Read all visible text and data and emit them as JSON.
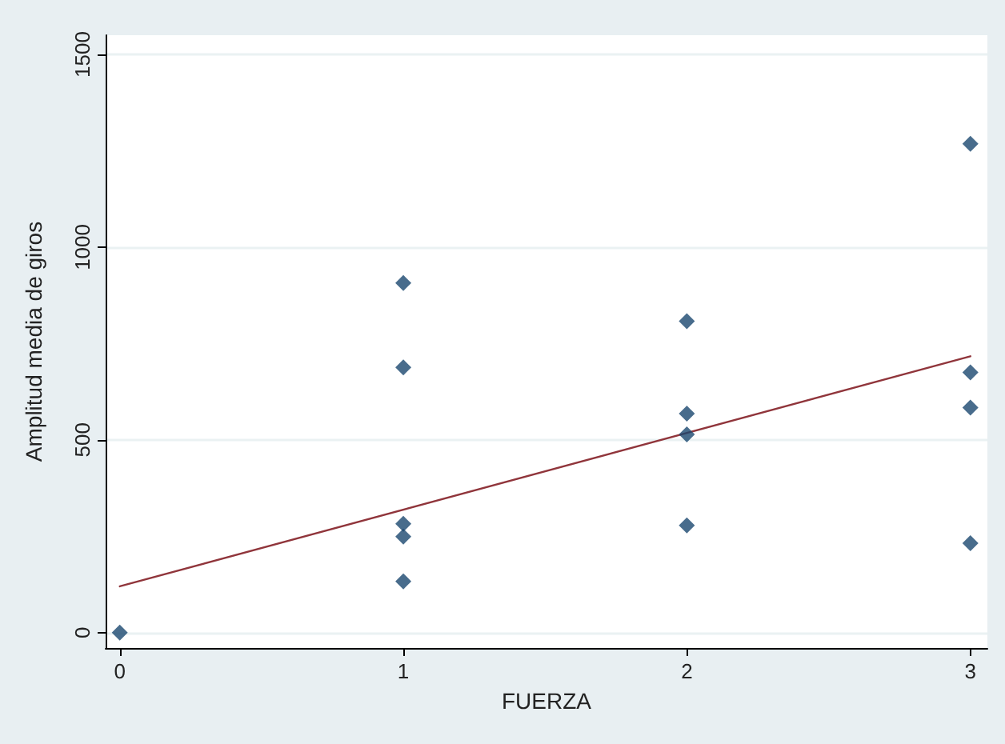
{
  "chart_data": {
    "type": "scatter",
    "xlabel": "FUERZA",
    "ylabel": "Amplitud media de giros",
    "xlim": [
      -0.05,
      3.06
    ],
    "xticks": [
      0,
      1,
      2,
      3
    ],
    "ylim": [
      -40,
      1550
    ],
    "yticks": [
      0,
      500,
      1000,
      1500
    ],
    "grid": "y",
    "marker": "diamond",
    "series": [
      {
        "color": "#1a476f",
        "x": [
          0,
          1,
          1,
          1,
          1,
          1,
          2,
          2,
          2,
          2,
          3,
          3,
          3,
          3
        ],
        "values": [
          0,
          907,
          688,
          282,
          249,
          133,
          808,
          568,
          514,
          278,
          1268,
          675,
          584,
          232
        ]
      },
      {
        "type": "line",
        "color": "#90353b",
        "marker": "none",
        "line_style": "solid",
        "x": [
          0,
          3
        ],
        "values": [
          120,
          717
        ]
      }
    ]
  }
}
